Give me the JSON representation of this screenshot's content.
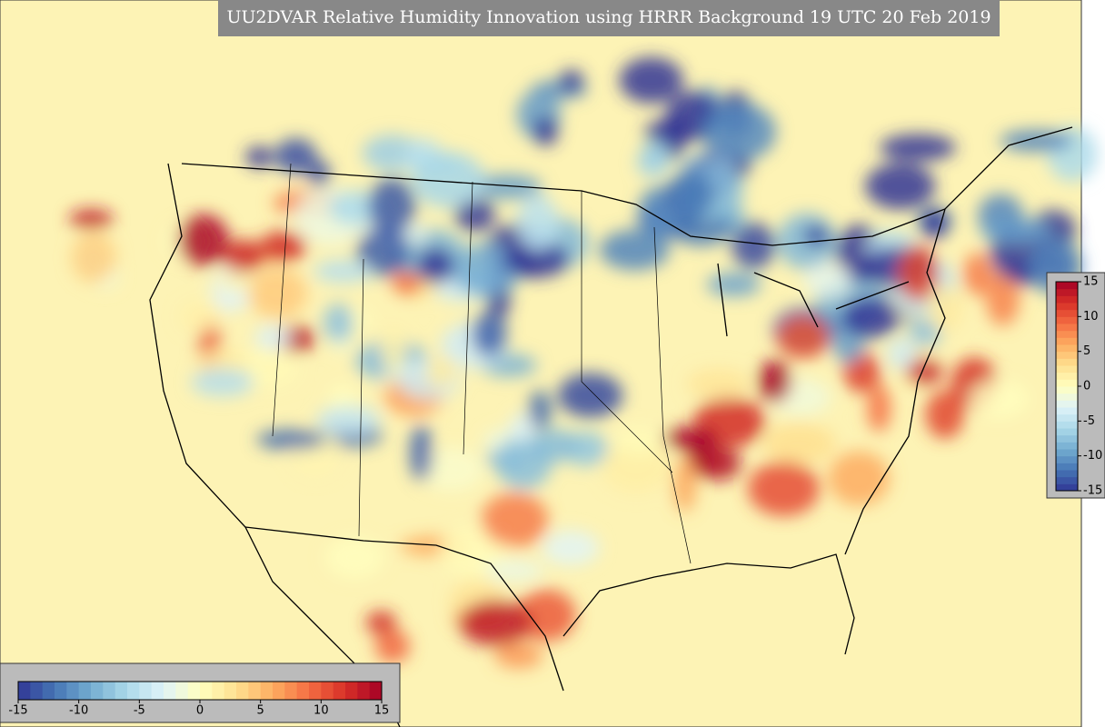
{
  "title": "UU2DVAR Relative Humidity Innovation using HRRR Background 19 UTC 20 Feb 2019",
  "colorbars": [
    {
      "orientation": "horizontal",
      "clim": [
        -15,
        15
      ],
      "ticks": [
        -15,
        -10,
        -5,
        0,
        5,
        10,
        15
      ]
    },
    {
      "orientation": "vertical",
      "clim": [
        -15,
        15
      ],
      "ticks": [
        -15,
        -10,
        -5,
        0,
        5,
        10,
        15
      ]
    }
  ],
  "colormap": [
    "#313695",
    "#4575b4",
    "#74add1",
    "#abd9e9",
    "#e0f3f8",
    "#ffffbf",
    "#fee090",
    "#fdae61",
    "#f46d43",
    "#d73027",
    "#a50026"
  ]
}
